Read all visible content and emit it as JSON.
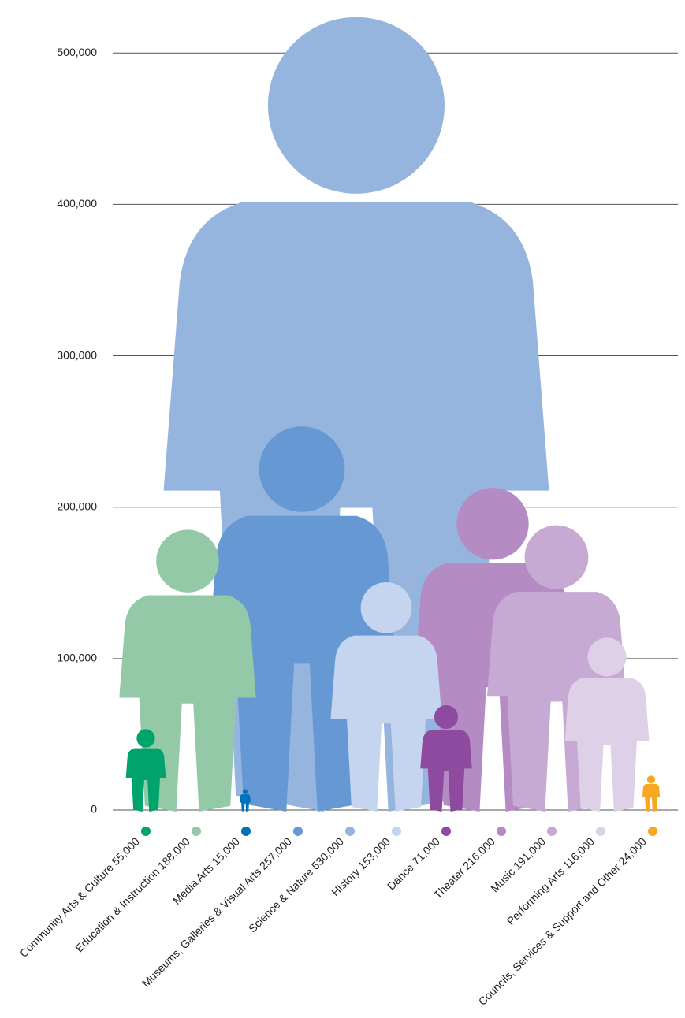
{
  "chart_data": {
    "type": "pictograph",
    "categories": [
      "Community Arts & Culture",
      "Education & Instruction",
      "Media Arts",
      "Museums, Galleries & Visual Arts",
      "Science & Nature",
      "History",
      "Dance",
      "Theater",
      "Music",
      "Performing Arts",
      "Councils, Services & Support and Other"
    ],
    "values": [
      55000,
      188000,
      15000,
      257000,
      530000,
      153000,
      71000,
      216000,
      191000,
      116000,
      24000
    ],
    "value_labels": [
      "55,000",
      "188,000",
      "15,000",
      "257,000",
      "530,000",
      "153,000",
      "71,000",
      "216,000",
      "191,000",
      "116,000",
      "24,000"
    ],
    "colors": [
      "#00a36c",
      "#93c9a6",
      "#0072bc",
      "#6699d3",
      "#95b5df",
      "#c5d5ef",
      "#8e4a9f",
      "#b48bc2",
      "#c7aad4",
      "#ddd0e7",
      "#f7a823"
    ],
    "ylim": [
      0,
      535000
    ],
    "yticks": [
      0,
      {
        "value": 100000,
        "label": "100,000"
      },
      {
        "value": 200000,
        "label": "200,000"
      },
      {
        "value": 300000,
        "label": "300,000"
      },
      {
        "value": 400000,
        "label": "400,000"
      },
      {
        "value": 500000,
        "label": "500,000"
      }
    ],
    "grid": true
  }
}
